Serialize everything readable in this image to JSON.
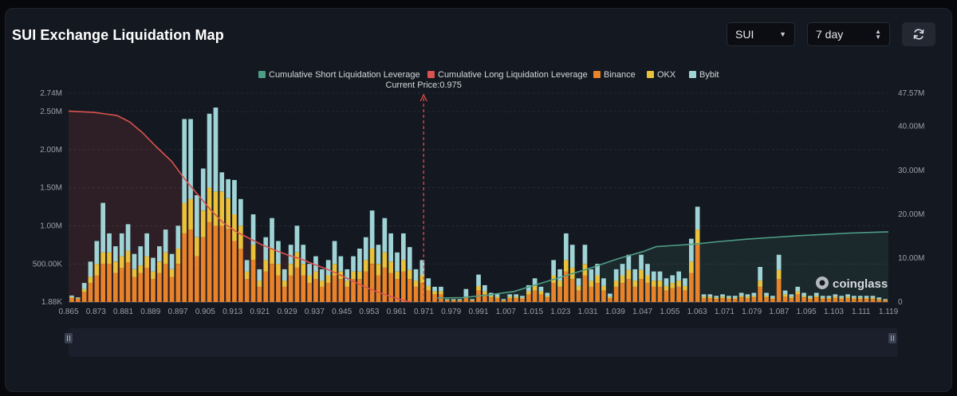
{
  "header": {
    "title": "SUI Exchange Liquidation Map",
    "symbol_select": "SUI",
    "range_select": "7 day",
    "refresh_icon": "refresh-icon"
  },
  "watermark": "coinglass",
  "colors": {
    "short_cum": "#4e9e86",
    "long_cum": "#d9534f",
    "binance": "#e8832a",
    "okx": "#e9c13a",
    "bybit": "#9fd3d6"
  },
  "chart_data": {
    "type": "bar",
    "current_price_label": "Current Price:0.975",
    "current_price": 0.975,
    "legend": [
      {
        "key": "short_cum",
        "label": "Cumulative Short Liquidation Leverage"
      },
      {
        "key": "long_cum",
        "label": "Cumulative Long Liquidation Leverage"
      },
      {
        "key": "binance",
        "label": "Binance"
      },
      {
        "key": "okx",
        "label": "OKX"
      },
      {
        "key": "bybit",
        "label": "Bybit"
      }
    ],
    "x_tick_labels": [
      "0.865",
      "0.873",
      "0.881",
      "0.889",
      "0.897",
      "0.905",
      "0.913",
      "0.921",
      "0.929",
      "0.937",
      "0.945",
      "0.953",
      "0.961",
      "0.971",
      "0.979",
      "0.991",
      "1.007",
      "1.015",
      "1.023",
      "1.031",
      "1.039",
      "1.047",
      "1.055",
      "1.063",
      "1.071",
      "1.079",
      "1.087",
      "1.095",
      "1.103",
      "1.111",
      "1.119"
    ],
    "y_left_ticks": [
      "1.88K",
      "500.00K",
      "1.00M",
      "1.50M",
      "2.00M",
      "2.50M",
      "2.74M"
    ],
    "y_left_values": [
      1880,
      500000,
      1000000,
      1500000,
      2000000,
      2500000,
      2740000
    ],
    "y_left_range": [
      1880,
      2740000
    ],
    "y_right_ticks": [
      "0",
      "10.00M",
      "20.00M",
      "30.00M",
      "40.00M",
      "47.57M"
    ],
    "y_right_values": [
      0,
      10000000,
      20000000,
      30000000,
      40000000,
      47570000
    ],
    "y_right_range": [
      0,
      47570000
    ],
    "series_bars": {
      "binance": [
        50000,
        40000,
        130000,
        250000,
        350000,
        500000,
        500000,
        380000,
        450000,
        520000,
        330000,
        380000,
        450000,
        300000,
        380000,
        500000,
        330000,
        500000,
        900000,
        950000,
        600000,
        850000,
        1050000,
        1000000,
        1000000,
        960000,
        800000,
        700000,
        300000,
        550000,
        200000,
        400000,
        500000,
        350000,
        200000,
        350000,
        450000,
        350000,
        250000,
        300000,
        200000,
        250000,
        350000,
        300000,
        200000,
        300000,
        300000,
        400000,
        500000,
        350000,
        450000,
        380000,
        300000,
        400000,
        300000,
        200000,
        250000,
        150000,
        100000,
        100000,
        20000,
        20000,
        20000,
        50000,
        20000,
        150000,
        100000,
        60000,
        50000,
        20000,
        50000,
        50000,
        40000,
        100000,
        150000,
        100000,
        60000,
        250000,
        200000,
        400000,
        300000,
        150000,
        350000,
        200000,
        250000,
        150000,
        50000,
        200000,
        250000,
        300000,
        200000,
        300000,
        250000,
        200000,
        200000,
        150000,
        180000,
        200000,
        150000,
        380000,
        750000,
        50000,
        50000,
        40000,
        50000,
        40000,
        40000,
        60000,
        50000,
        60000,
        200000,
        60000,
        40000,
        300000,
        70000,
        50000,
        100000,
        60000,
        40000,
        60000,
        40000,
        40000,
        50000,
        40000,
        50000,
        40000,
        40000,
        40000,
        40000,
        30000,
        20000
      ],
      "okx": [
        15000,
        10000,
        40000,
        80000,
        150000,
        150000,
        150000,
        150000,
        150000,
        150000,
        100000,
        100000,
        150000,
        100000,
        150000,
        150000,
        100000,
        200000,
        400000,
        400000,
        250000,
        350000,
        450000,
        450000,
        450000,
        400000,
        350000,
        300000,
        100000,
        200000,
        80000,
        150000,
        200000,
        150000,
        80000,
        150000,
        200000,
        150000,
        100000,
        100000,
        80000,
        100000,
        150000,
        100000,
        80000,
        100000,
        100000,
        150000,
        200000,
        150000,
        200000,
        150000,
        100000,
        150000,
        120000,
        80000,
        100000,
        60000,
        40000,
        40000,
        8000,
        8000,
        8000,
        20000,
        8000,
        60000,
        40000,
        20000,
        20000,
        8000,
        20000,
        20000,
        15000,
        40000,
        60000,
        40000,
        20000,
        100000,
        80000,
        150000,
        150000,
        60000,
        150000,
        80000,
        100000,
        60000,
        20000,
        80000,
        100000,
        120000,
        80000,
        120000,
        100000,
        80000,
        80000,
        60000,
        70000,
        80000,
        60000,
        150000,
        200000,
        20000,
        20000,
        15000,
        20000,
        15000,
        15000,
        20000,
        20000,
        20000,
        80000,
        20000,
        15000,
        120000,
        30000,
        20000,
        40000,
        20000,
        15000,
        20000,
        15000,
        15000,
        20000,
        15000,
        20000,
        15000,
        15000,
        15000,
        15000,
        10000,
        8000
      ],
      "bybit": [
        20000,
        10000,
        80000,
        200000,
        300000,
        650000,
        250000,
        200000,
        300000,
        350000,
        200000,
        250000,
        300000,
        180000,
        200000,
        300000,
        200000,
        300000,
        1100000,
        1050000,
        550000,
        550000,
        970000,
        1100000,
        250000,
        250000,
        450000,
        350000,
        150000,
        400000,
        150000,
        300000,
        400000,
        300000,
        150000,
        250000,
        350000,
        250000,
        150000,
        200000,
        150000,
        200000,
        300000,
        200000,
        150000,
        200000,
        300000,
        300000,
        500000,
        250000,
        450000,
        370000,
        250000,
        350000,
        300000,
        150000,
        200000,
        100000,
        60000,
        60000,
        10000,
        10000,
        10000,
        100000,
        10000,
        150000,
        80000,
        40000,
        30000,
        10000,
        30000,
        30000,
        25000,
        80000,
        100000,
        60000,
        40000,
        200000,
        150000,
        350000,
        300000,
        100000,
        250000,
        150000,
        150000,
        100000,
        40000,
        150000,
        150000,
        200000,
        150000,
        200000,
        150000,
        120000,
        120000,
        100000,
        100000,
        120000,
        100000,
        300000,
        300000,
        30000,
        30000,
        25000,
        30000,
        25000,
        25000,
        40000,
        30000,
        40000,
        180000,
        40000,
        25000,
        200000,
        50000,
        30000,
        60000,
        40000,
        25000,
        40000,
        25000,
        25000,
        30000,
        25000,
        30000,
        25000,
        25000,
        25000,
        25000,
        20000,
        10000
      ]
    },
    "cumulative_long": {
      "x_points": [
        0.865,
        0.873,
        0.88,
        0.884,
        0.888,
        0.892,
        0.897,
        0.901,
        0.905,
        0.909,
        0.913,
        0.917,
        0.921,
        0.925,
        0.929,
        0.933,
        0.937,
        0.941,
        0.945,
        0.949,
        0.953,
        0.957,
        0.961,
        0.965,
        0.969,
        0.971
      ],
      "values": [
        43500000,
        43200000,
        42500000,
        41000000,
        38500000,
        35500000,
        32000000,
        28000000,
        24500000,
        21000000,
        18000000,
        16000000,
        14500000,
        13000000,
        11800000,
        10700000,
        9800000,
        8600000,
        7500000,
        6200000,
        4800000,
        3400000,
        2200000,
        1200000,
        300000,
        0
      ]
    },
    "cumulative_short": {
      "x_points": [
        0.979,
        0.987,
        0.995,
        1.003,
        1.011,
        1.019,
        1.027,
        1.035,
        1.043,
        1.047,
        1.051,
        1.059,
        1.067,
        1.075,
        1.083,
        1.091,
        1.099,
        1.107,
        1.115,
        1.119
      ],
      "values": [
        900000,
        1000000,
        1600000,
        2400000,
        4200000,
        6000000,
        7800000,
        9800000,
        11500000,
        12600000,
        12800000,
        13200000,
        13800000,
        14300000,
        14700000,
        15100000,
        15400000,
        15700000,
        15900000,
        16000000
      ]
    }
  }
}
